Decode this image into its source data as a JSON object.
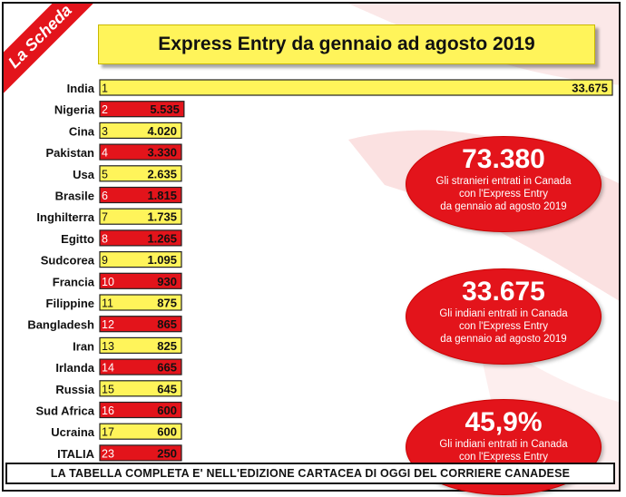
{
  "badge": "La Scheda",
  "colors": {
    "red": "#e3141b",
    "yellow": "#fff45a",
    "title_bg": "#fff45a",
    "bar_border": "#222222"
  },
  "chart_data": {
    "type": "bar",
    "orientation": "horizontal",
    "title": "Express Entry da gennaio ad agosto 2019",
    "xlim": [
      0,
      33675
    ],
    "grid": false,
    "rows": [
      {
        "country": "India",
        "rank": "1",
        "value": 33675,
        "label": "33.675",
        "color": "yellow"
      },
      {
        "country": "Nigeria",
        "rank": "2",
        "value": 5535,
        "label": "5.535",
        "color": "red"
      },
      {
        "country": "Cina",
        "rank": "3",
        "value": 4020,
        "label": "4.020",
        "color": "yellow"
      },
      {
        "country": "Pakistan",
        "rank": "4",
        "value": 3330,
        "label": "3.330",
        "color": "red"
      },
      {
        "country": "Usa",
        "rank": "5",
        "value": 2635,
        "label": "2.635",
        "color": "yellow"
      },
      {
        "country": "Brasile",
        "rank": "6",
        "value": 1815,
        "label": "1.815",
        "color": "red"
      },
      {
        "country": "Inghilterra",
        "rank": "7",
        "value": 1735,
        "label": "1.735",
        "color": "yellow"
      },
      {
        "country": "Egitto",
        "rank": "8",
        "value": 1265,
        "label": "1.265",
        "color": "red"
      },
      {
        "country": "Sudcorea",
        "rank": "9",
        "value": 1095,
        "label": "1.095",
        "color": "yellow"
      },
      {
        "country": "Francia",
        "rank": "10",
        "value": 930,
        "label": "930",
        "color": "red"
      },
      {
        "country": "Filippine",
        "rank": "11",
        "value": 875,
        "label": "875",
        "color": "yellow"
      },
      {
        "country": "Bangladesh",
        "rank": "12",
        "value": 865,
        "label": "865",
        "color": "red"
      },
      {
        "country": "Iran",
        "rank": "13",
        "value": 825,
        "label": "825",
        "color": "yellow"
      },
      {
        "country": "Irlanda",
        "rank": "14",
        "value": 665,
        "label": "665",
        "color": "red"
      },
      {
        "country": "Russia",
        "rank": "15",
        "value": 645,
        "label": "645",
        "color": "yellow"
      },
      {
        "country": "Sud Africa",
        "rank": "16",
        "value": 600,
        "label": "600",
        "color": "red"
      },
      {
        "country": "Ucraina",
        "rank": "17",
        "value": 600,
        "label": "600",
        "color": "yellow"
      },
      {
        "country": "ITALIA",
        "rank": "23",
        "value": 250,
        "label": "250",
        "color": "red"
      }
    ]
  },
  "callouts": [
    {
      "value": "73.380",
      "text": "Gli stranieri entrati in Canada\ncon l'Express Entry\nda gennaio ad agosto 2019"
    },
    {
      "value": "33.675",
      "text": "Gli indiani entrati in Canada\ncon l'Express Entry\nda gennaio ad agosto 2019"
    },
    {
      "value": "45,9%",
      "text": "Gli indiani entrati in Canada\ncon l'Express Entry"
    }
  ],
  "footer": "LA TABELLA COMPLETA E' NELL'EDIZIONE CARTACEA DI OGGI DEL CORRIERE CANADESE"
}
